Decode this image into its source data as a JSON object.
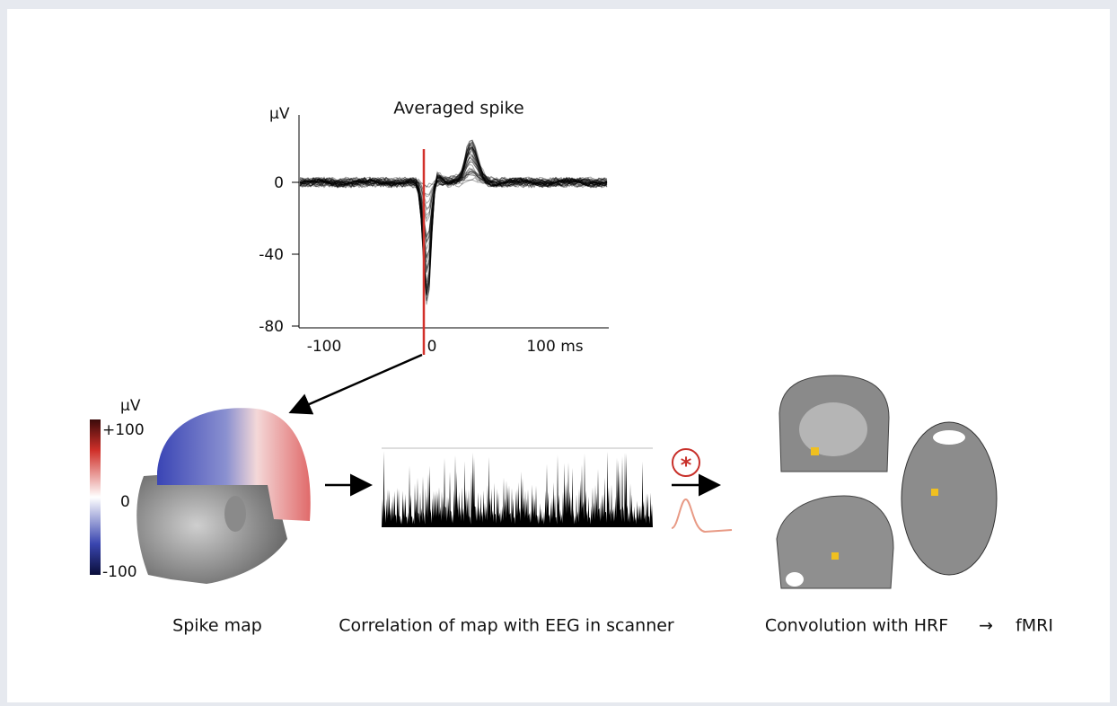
{
  "spike_plot": {
    "title": "Averaged spike",
    "y_unit": "μV",
    "yticks": [
      "0",
      "-40",
      "-80"
    ],
    "xticks": [
      "-100",
      "0",
      "100 ms"
    ]
  },
  "spike_map": {
    "unit": "μV",
    "colorbar_labels": [
      "+100",
      "0",
      "-100"
    ]
  },
  "convolution_symbol": "*",
  "captions": {
    "spike_map": "Spike map",
    "correlation": "Correlation of map with EEG in scanner",
    "convolution": "Convolution with HRF",
    "arrow": "→",
    "fmri": "fMRI"
  }
}
